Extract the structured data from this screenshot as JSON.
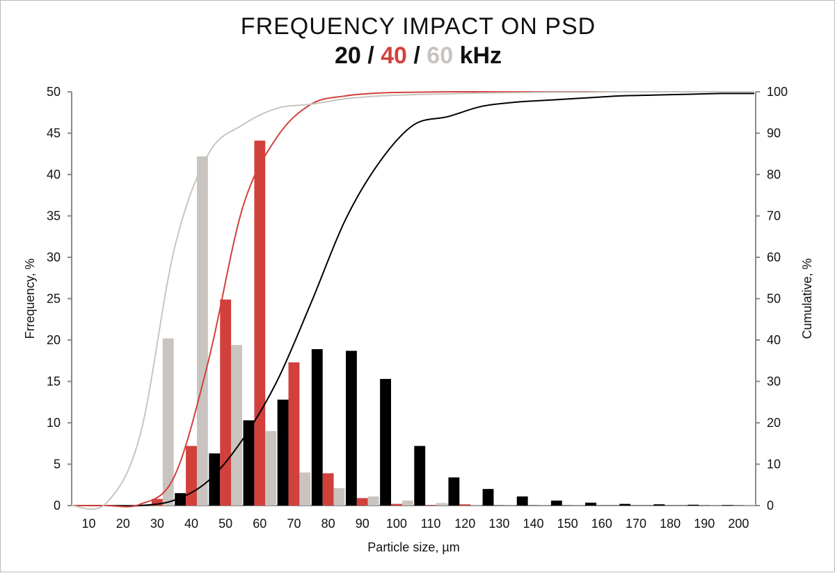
{
  "chart_data": {
    "type": "bar",
    "title": "FREQUENCY IMPACT ON PSD",
    "subtitle_parts": [
      {
        "text": "20",
        "color": "#111111"
      },
      {
        "text": " / ",
        "color": "#111111"
      },
      {
        "text": "40",
        "color": "#d2403c"
      },
      {
        "text": " / ",
        "color": "#111111"
      },
      {
        "text": "60",
        "color": "#c9c4bf"
      },
      {
        "text": " kHz",
        "color": "#111111"
      }
    ],
    "xlabel": "Particle size, µm",
    "ylabel": "Frrequency, %",
    "y2label": "Cumulative, %",
    "categories": [
      "10",
      "20",
      "30",
      "40",
      "50",
      "60",
      "70",
      "80",
      "90",
      "100",
      "110",
      "120",
      "130",
      "140",
      "150",
      "160",
      "170",
      "180",
      "190",
      "200"
    ],
    "ylim": [
      0,
      50
    ],
    "yticks": [
      0,
      5,
      10,
      15,
      20,
      25,
      30,
      35,
      40,
      45,
      50
    ],
    "y2lim": [
      0,
      100
    ],
    "y2ticks": [
      0,
      10,
      20,
      30,
      40,
      50,
      60,
      70,
      80,
      90,
      100
    ],
    "grid": false,
    "series": [
      {
        "color": "#000000",
        "values": [
          0,
          0,
          0,
          1.5,
          6.3,
          10.3,
          12.8,
          18.9,
          18.7,
          15.3,
          7.2,
          3.4,
          2.0,
          1.1,
          0.6,
          0.35,
          0.2,
          0.15,
          0.1,
          0.05
        ],
        "cumulative": [
          0,
          0,
          0,
          1.3,
          6,
          16,
          30,
          49,
          69,
          83,
          92,
          94,
          96.5,
          97.5,
          98,
          98.5,
          99,
          99.2,
          99.4,
          99.6
        ]
      },
      {
        "color": "#d2403c",
        "values": [
          0,
          0,
          0.8,
          7.2,
          24.9,
          44.1,
          17.3,
          3.9,
          0.9,
          0.2,
          0.05,
          0.15,
          0,
          0,
          0,
          0,
          0,
          0,
          0,
          0
        ],
        "cumulative": [
          0,
          0,
          0.3,
          7,
          35,
          72,
          89,
          97,
          99,
          99.7,
          99.9,
          100,
          100,
          100,
          100,
          100,
          100,
          100,
          100,
          100
        ]
      },
      {
        "color": "#c9c4bf",
        "values": [
          0,
          0,
          20.2,
          42.2,
          19.4,
          9.0,
          4.0,
          2.1,
          1.1,
          0.6,
          0.3,
          0.1,
          0.05,
          0.05,
          0.05,
          0,
          0,
          0,
          0.05,
          0.1
        ],
        "cumulative": [
          0,
          0.5,
          17,
          62,
          85,
          92,
          96,
          97,
          98.3,
          99,
          99.3,
          99.5,
          99.7,
          99.8,
          99.9,
          99.9,
          100,
          100,
          100,
          100
        ]
      }
    ]
  }
}
